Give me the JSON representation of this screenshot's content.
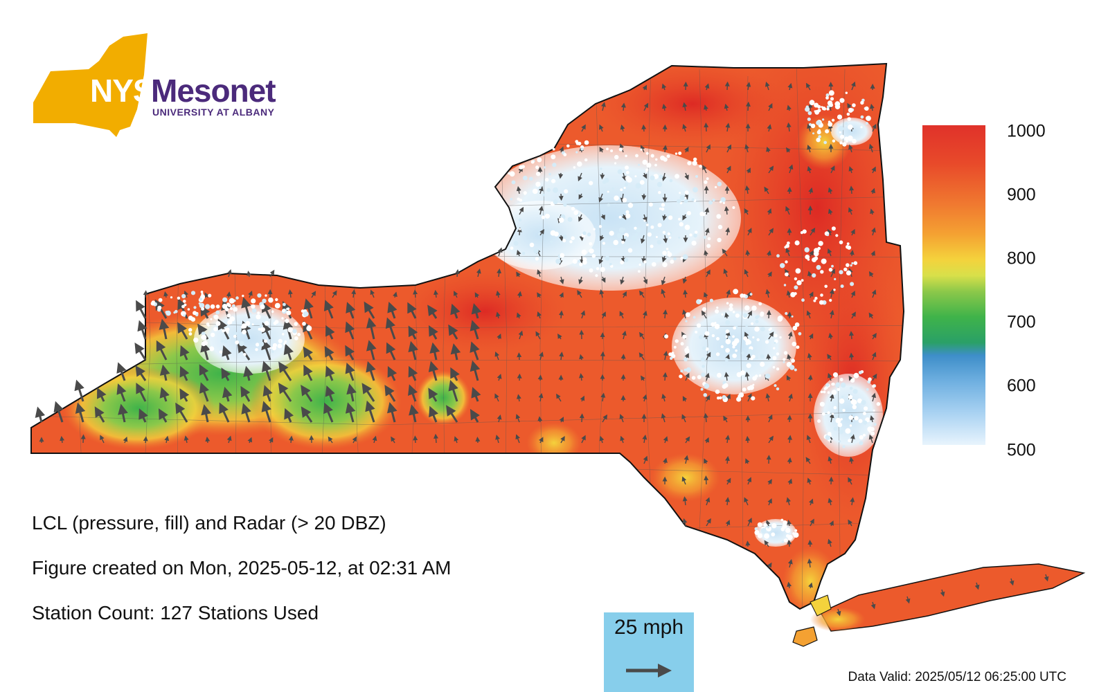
{
  "logo": {
    "nys": "NYS",
    "mesonet": "Mesonet",
    "subtitle": "UNIVERSITY AT ALBANY",
    "brand_gold": "#f2ad00",
    "brand_purple": "#4b2a7b"
  },
  "colorbar": {
    "labels": [
      "1000",
      "900",
      "800",
      "700",
      "600",
      "500"
    ],
    "range": [
      500,
      1000
    ]
  },
  "captions": {
    "title": "LCL (pressure, fill) and Radar (> 20 DBZ)",
    "created": "Figure created on Mon, 2025-05-12, at 02:31 AM",
    "stations": "Station Count: 127 Stations Used"
  },
  "wind_legend": {
    "label": "25 mph",
    "background": "#87ceeb"
  },
  "data_valid": "Data Valid: 2025/05/12 06:25:00 UTC",
  "map_colors": {
    "high": "#e0322a",
    "mid": "#f07a30",
    "yellow": "#f4d23c",
    "green": "#3fb34a",
    "radar": "#d6ecf8",
    "arrow": "#4a4a4a"
  }
}
